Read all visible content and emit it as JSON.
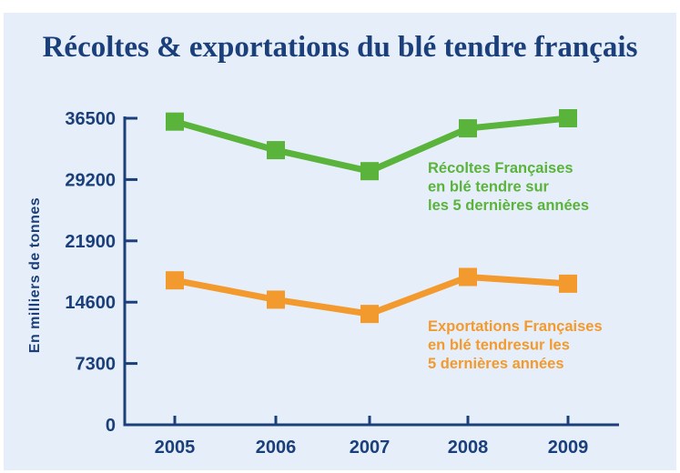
{
  "chart_data": {
    "type": "line",
    "title": "Récoltes & exportations du blé tendre français",
    "ylabel": "En milliers de tonnes",
    "xlabel": "",
    "categories": [
      "2005",
      "2006",
      "2007",
      "2008",
      "2009"
    ],
    "ylim": [
      0,
      36500
    ],
    "yticks": [
      "0",
      "7300",
      "14600",
      "21900",
      "29200",
      "36500"
    ],
    "grid": false,
    "series": [
      {
        "name_lines": [
          "Récoltes Françaises",
          "en blé tendre sur",
          "les 5 dernières années"
        ],
        "color": "#5ab33b",
        "marker": "square",
        "values": [
          36100,
          32700,
          30200,
          35300,
          36500
        ]
      },
      {
        "name_lines": [
          "Exportations Françaises",
          "en blé tendresur les",
          "5 dernières années"
        ],
        "color": "#f39a2e",
        "marker": "square",
        "values": [
          17200,
          14900,
          13200,
          17600,
          16800
        ]
      }
    ]
  },
  "colors": {
    "panel_background": "#e6eff9",
    "title_color": "#1b3f7a",
    "axis_color": "#1b3f7a"
  }
}
